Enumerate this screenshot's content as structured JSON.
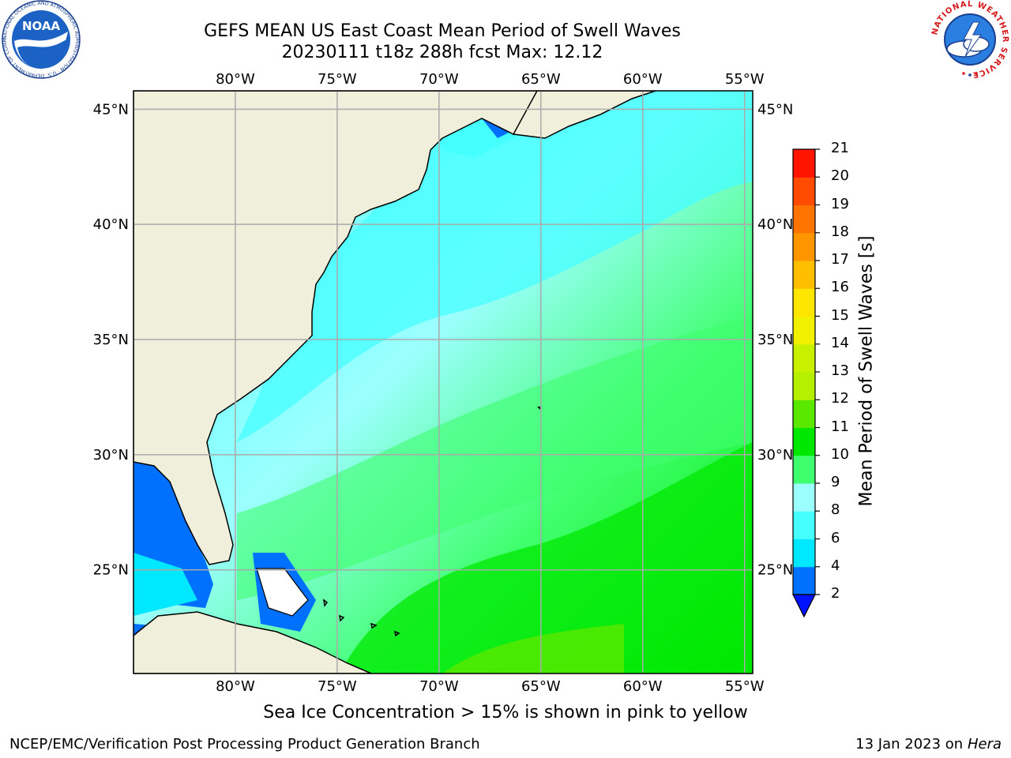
{
  "header": {
    "title_line1": "GEFS MEAN US East Coast Mean Period of Swell Waves",
    "title_line2": "20230111 t18z 288h fcst   Max: 12.12"
  },
  "logos": {
    "left": {
      "text": "NOAA",
      "ring_text": "NATIONAL OCEANIC AND ATMOSPHERIC ADMINISTRATION · U.S. DEPARTMENT OF COMMERCE"
    },
    "right": {
      "ring_text": "NATIONAL WEATHER SERVICE"
    }
  },
  "map": {
    "lon_labels": [
      "80°W",
      "75°W",
      "70°W",
      "65°W",
      "60°W",
      "55°W"
    ],
    "lat_labels": [
      "45°N",
      "40°N",
      "35°N",
      "30°N",
      "25°N"
    ],
    "lon_values": [
      -80,
      -75,
      -70,
      -65,
      -60,
      -55
    ],
    "lat_values": [
      45,
      40,
      35,
      30,
      25
    ],
    "extent": {
      "lon": [
        -85,
        -54.6
      ],
      "lat": [
        20.5,
        45.8
      ]
    },
    "land_color": "#efefdc",
    "grid_color": "#aaaaaa"
  },
  "colorbar": {
    "title": "Mean Period of Swell Waves [s]",
    "levels": [
      2,
      4,
      6,
      8,
      9,
      10,
      11,
      12,
      13,
      14,
      15,
      16,
      17,
      18,
      19,
      20,
      21
    ],
    "level_labels": [
      "2",
      "4",
      "6",
      "8",
      "9",
      "10",
      "11",
      "12",
      "13",
      "14",
      "15",
      "16",
      "17",
      "18",
      "19",
      "20",
      "21"
    ],
    "colors": [
      "#0070ff",
      "#00e8ff",
      "#45ffff",
      "#9cffff",
      "#40ff6e",
      "#00e800",
      "#5ae800",
      "#b4f000",
      "#c8f000",
      "#f0f000",
      "#ffe600",
      "#ffbe00",
      "#ff9600",
      "#ff7300",
      "#ff4b00",
      "#ff1400"
    ],
    "under_color": "#0012ff"
  },
  "footer": {
    "note": "Sea Ice Concentration > 15% is shown in pink to yellow",
    "left": "NCEP/EMC/Verification Post Processing Product Generation Branch",
    "right_date": "13 Jan 2023 on ",
    "right_host": "Hera"
  }
}
